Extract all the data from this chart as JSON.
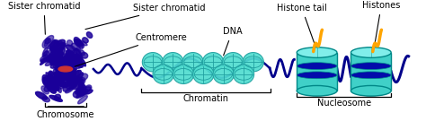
{
  "bg_color": "#ffffff",
  "chromosome_color": "#1a0099",
  "centromere_color": "#cc3333",
  "chromatin_ball_color": "#50ddd0",
  "chromatin_ball_edge": "#20a0a0",
  "dna_line_color": "#00008b",
  "nucleosome_body_color": "#40d0c8",
  "nucleosome_top_color": "#80eeea",
  "nucleosome_edge": "#008888",
  "nucleosome_stripe_color": "#0000aa",
  "histone_tail_color": "#FFA500",
  "label_color": "#000000",
  "labels": {
    "sister_chromatid_left": "Sister chromatid",
    "sister_chromatid_right": "Sister chromatid",
    "centromere": "Centromere",
    "dna": "DNA",
    "chromatin": "Chromatin",
    "chromosome": "Chromosome",
    "histone_tail": "Histone tail",
    "histones": "Histones",
    "nucleosome": "Nucleosome"
  },
  "figsize": [
    4.74,
    1.45
  ],
  "dpi": 100
}
